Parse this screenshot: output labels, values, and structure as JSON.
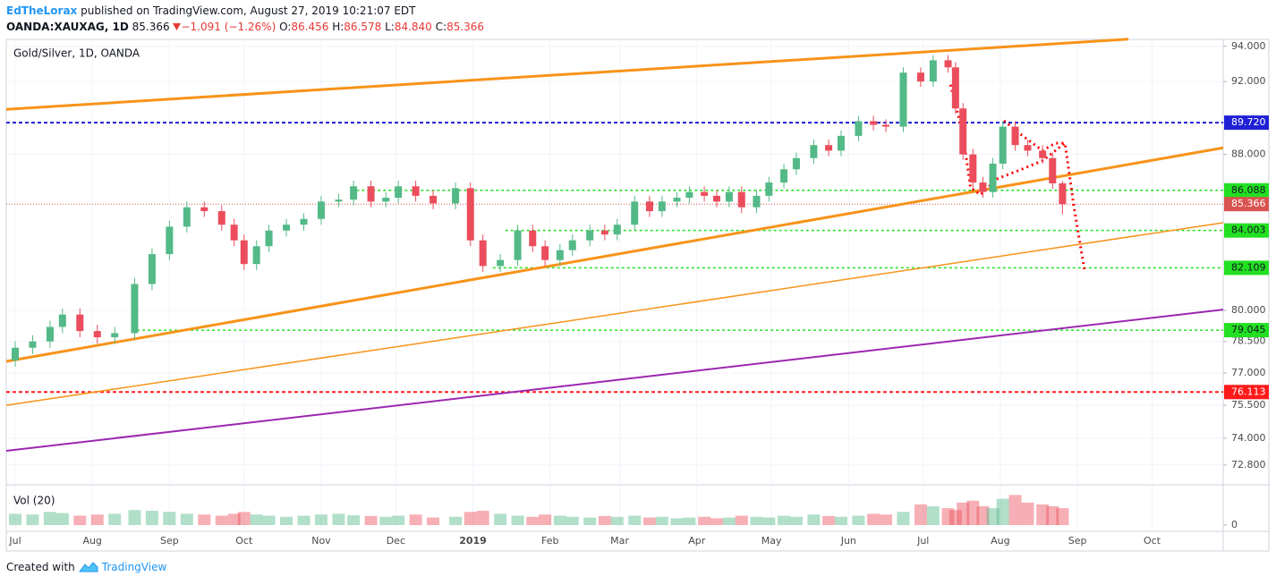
{
  "header": {
    "author": "EdTheLorax",
    "published": "published on TradingView.com, August 27, 2019 10:21:07 EDT",
    "symbol": "OANDA:XAUXAG, 1D",
    "last": "85.366",
    "change": "−1.091 (−1.26%)",
    "o_label": "O:",
    "o": "86.456",
    "h_label": "H:",
    "h": "86.578",
    "l_label": "L:",
    "l": "84.840",
    "c_label": "C:",
    "c": "85.366"
  },
  "chart_data": {
    "type": "candlestick",
    "title": "Gold/Silver, 1D, OANDA",
    "log": true,
    "grid": true,
    "up_color": "#53b987",
    "down_color": "#eb4d5c",
    "x": [
      0,
      7,
      14,
      19,
      26,
      33,
      40,
      48,
      55,
      62,
      69,
      76,
      83,
      88,
      92,
      97,
      102,
      109,
      116,
      123,
      130,
      136,
      143,
      149,
      154,
      161,
      168,
      177,
      183,
      188,
      195,
      202,
      208,
      213,
      219,
      224,
      231,
      237,
      242,
      249,
      255,
      260,
      266,
      271,
      277,
      282,
      287,
      292,
      298,
      303,
      309,
      314,
      321,
      327,
      332,
      339,
      345,
      350,
      357,
      364,
      369,
      375,
      378,
      381,
      385,
      389,
      393,
      397,
      402,
      407,
      413,
      417,
      421
    ],
    "open": [
      77.6,
      78.2,
      78.5,
      79.2,
      79.8,
      79.0,
      78.7,
      78.9,
      81.3,
      82.8,
      84.2,
      85.2,
      85.0,
      84.3,
      83.5,
      82.3,
      83.2,
      84.0,
      84.3,
      84.6,
      85.5,
      85.6,
      86.3,
      85.5,
      85.7,
      86.3,
      85.8,
      85.4,
      86.2,
      83.5,
      82.2,
      82.5,
      84.0,
      83.2,
      82.5,
      83.0,
      83.5,
      84.0,
      83.8,
      84.3,
      85.5,
      85.0,
      85.5,
      85.7,
      86.0,
      85.8,
      85.5,
      86.0,
      85.2,
      85.8,
      86.5,
      87.2,
      87.8,
      88.5,
      88.2,
      89.0,
      89.8,
      89.6,
      89.5,
      92.5,
      92.0,
      93.2,
      92.8,
      90.5,
      88.0,
      86.5,
      86.0,
      87.5,
      89.5,
      88.5,
      88.2,
      87.8,
      86.456
    ],
    "high": [
      78.5,
      78.8,
      79.5,
      80.1,
      80.1,
      79.3,
      79.2,
      81.6,
      83.1,
      84.5,
      85.5,
      85.5,
      85.3,
      84.6,
      83.8,
      83.5,
      84.3,
      84.6,
      84.9,
      85.8,
      85.9,
      86.6,
      86.6,
      86.0,
      86.6,
      86.6,
      86.1,
      86.5,
      86.5,
      83.8,
      82.8,
      84.3,
      84.3,
      83.5,
      83.3,
      83.8,
      84.3,
      84.3,
      84.6,
      85.8,
      85.8,
      85.8,
      86.0,
      86.3,
      86.3,
      86.1,
      86.3,
      86.3,
      86.1,
      86.8,
      87.5,
      88.1,
      88.8,
      88.8,
      89.3,
      90.1,
      90.1,
      89.9,
      92.8,
      92.8,
      93.5,
      93.5,
      93.1,
      90.8,
      88.3,
      86.8,
      87.8,
      89.8,
      89.8,
      88.8,
      88.5,
      88.1,
      86.578
    ],
    "low": [
      77.3,
      77.9,
      78.2,
      78.9,
      78.7,
      78.4,
      78.4,
      78.6,
      81.0,
      82.5,
      83.9,
      84.7,
      84.0,
      83.2,
      82.0,
      82.0,
      82.9,
      83.7,
      84.0,
      84.3,
      85.2,
      85.3,
      85.2,
      85.2,
      85.4,
      85.5,
      85.1,
      85.1,
      83.2,
      81.9,
      81.9,
      82.2,
      82.9,
      82.2,
      82.2,
      82.7,
      83.2,
      83.5,
      83.5,
      84.0,
      84.7,
      84.7,
      85.2,
      85.4,
      85.5,
      85.2,
      85.2,
      84.9,
      84.9,
      85.5,
      86.2,
      86.9,
      87.5,
      87.9,
      87.9,
      88.7,
      89.3,
      89.2,
      89.2,
      91.7,
      91.7,
      92.5,
      90.2,
      87.7,
      86.2,
      85.7,
      85.7,
      87.2,
      88.2,
      87.9,
      87.5,
      86.157,
      84.84
    ],
    "close": [
      78.2,
      78.5,
      79.2,
      79.8,
      79.0,
      78.7,
      78.9,
      81.3,
      82.8,
      84.2,
      85.2,
      85.0,
      84.3,
      83.5,
      82.3,
      83.2,
      84.0,
      84.3,
      84.6,
      85.5,
      85.6,
      86.3,
      85.5,
      85.7,
      86.3,
      85.8,
      85.4,
      86.2,
      83.5,
      82.2,
      82.5,
      84.0,
      83.2,
      82.5,
      83.0,
      83.5,
      84.0,
      83.8,
      84.3,
      85.5,
      85.0,
      85.5,
      85.7,
      86.0,
      85.8,
      85.5,
      86.0,
      85.2,
      85.8,
      86.5,
      87.2,
      87.8,
      88.5,
      88.2,
      89.0,
      89.8,
      89.6,
      89.5,
      92.5,
      92.0,
      93.2,
      92.8,
      90.5,
      88.0,
      86.5,
      86.0,
      87.5,
      89.5,
      88.5,
      88.2,
      87.8,
      86.457,
      85.366
    ],
    "volume": [
      30,
      28,
      35,
      32,
      25,
      28,
      30,
      40,
      38,
      35,
      30,
      28,
      25,
      30,
      35,
      28,
      25,
      22,
      25,
      28,
      30,
      26,
      24,
      22,
      25,
      28,
      20,
      22,
      35,
      38,
      30,
      25,
      22,
      28,
      25,
      22,
      20,
      24,
      22,
      25,
      20,
      22,
      18,
      20,
      22,
      18,
      20,
      25,
      22,
      20,
      25,
      22,
      28,
      24,
      22,
      25,
      30,
      28,
      35,
      55,
      50,
      45,
      40,
      60,
      65,
      50,
      45,
      70,
      80,
      60,
      55,
      50,
      45
    ],
    "volume_title": "Vol (20)",
    "vlim": [
      0,
      100
    ],
    "vticks": [
      0
    ],
    "xlim": [
      -3.6,
      485.6
    ],
    "xticks": [
      {
        "value": 0,
        "label": "Jul"
      },
      {
        "value": 31,
        "label": "Aug"
      },
      {
        "value": 62,
        "label": "Sep"
      },
      {
        "value": 92,
        "label": "Oct"
      },
      {
        "value": 123,
        "label": "Nov"
      },
      {
        "value": 153,
        "label": "Dec"
      },
      {
        "value": 184,
        "label": "2019"
      },
      {
        "value": 215,
        "label": "Feb"
      },
      {
        "value": 243,
        "label": "Mar"
      },
      {
        "value": 274,
        "label": "Apr"
      },
      {
        "value": 304,
        "label": "May"
      },
      {
        "value": 335,
        "label": "Jun"
      },
      {
        "value": 365,
        "label": "Jul"
      },
      {
        "value": 396,
        "label": "Aug"
      },
      {
        "value": 427,
        "label": "Sep"
      },
      {
        "value": 457,
        "label": "Oct"
      }
    ],
    "ylim": [
      72.0,
      94.4
    ],
    "yticks": [
      {
        "value": 94,
        "label": "94.000"
      },
      {
        "value": 92,
        "label": "92.000"
      },
      {
        "value": 88,
        "label": "88.000"
      },
      {
        "value": 80,
        "label": "80.000"
      },
      {
        "value": 78.5,
        "label": "78.500"
      },
      {
        "value": 77,
        "label": "77.000"
      },
      {
        "value": 75.5,
        "label": "75.500"
      },
      {
        "value": 74,
        "label": "74.000"
      },
      {
        "value": 72.8,
        "label": "72.800"
      }
    ],
    "levels": [
      {
        "value": 89.72,
        "label": "89.720",
        "color": "#1f1fd6",
        "text_color": "#ffffff",
        "dash": "4,3",
        "width": 2
      },
      {
        "value": 86.088,
        "label": "86.088",
        "color": "#22e022",
        "text_color": "#131722",
        "dash": "3,3",
        "width": 1.5,
        "x_start": 135
      },
      {
        "value": 85.366,
        "label": "85.366",
        "color": "#d9534f",
        "text_color": "#ffffff",
        "dash": "1,2",
        "width": 1
      },
      {
        "value": 84.003,
        "label": "84.003",
        "color": "#22e022",
        "text_color": "#131722",
        "dash": "3,3",
        "width": 1.5,
        "x_start": 197
      },
      {
        "value": 82.109,
        "label": "82.109",
        "color": "#22e022",
        "text_color": "#131722",
        "dash": "3,3",
        "width": 1.5,
        "x_start": 192
      },
      {
        "value": 79.045,
        "label": "79.045",
        "color": "#22e022",
        "text_color": "#131722",
        "dash": "3,3",
        "width": 1.5,
        "x_start": 46.8
      },
      {
        "value": 76.113,
        "label": "76.113",
        "color": "#ff1a1a",
        "text_color": "#ffffff",
        "dash": "4,3",
        "width": 2
      }
    ],
    "lines": [
      {
        "x": [
          -3.6,
          447.5
        ],
        "y": [
          90.45,
          94.41
        ],
        "color": "#f7931a",
        "width": 3
      },
      {
        "x": [
          -3.6,
          485.6
        ],
        "y": [
          77.55,
          88.35
        ],
        "color": "#f7931a",
        "width": 3
      },
      {
        "x": [
          -3.6,
          485.6
        ],
        "y": [
          75.5,
          84.4
        ],
        "color": "#f7931a",
        "width": 1.5
      },
      {
        "x": [
          -3.6,
          485.6
        ],
        "y": [
          73.43,
          80.04
        ],
        "color": "#9c27b0",
        "width": 2
      },
      {
        "x": [
          376,
          381,
          384,
          388,
          395,
          404,
          413,
          422,
          425.5,
          430
        ],
        "y": [
          91.82,
          89.1,
          86.23,
          85.86,
          86.71,
          87.17,
          87.66,
          88.61,
          85.3,
          81.87
        ],
        "color": "#ff0000",
        "width": 3,
        "dash": "2,4"
      },
      {
        "x": [
          397.5,
          404,
          413,
          418,
          422
        ],
        "y": [
          89.83,
          89.1,
          88.2,
          88.6,
          88.61
        ],
        "color": "#ff0000",
        "width": 3,
        "dash": "2,4"
      }
    ]
  },
  "footer": {
    "created": "Created with",
    "brand": "TradingView"
  }
}
